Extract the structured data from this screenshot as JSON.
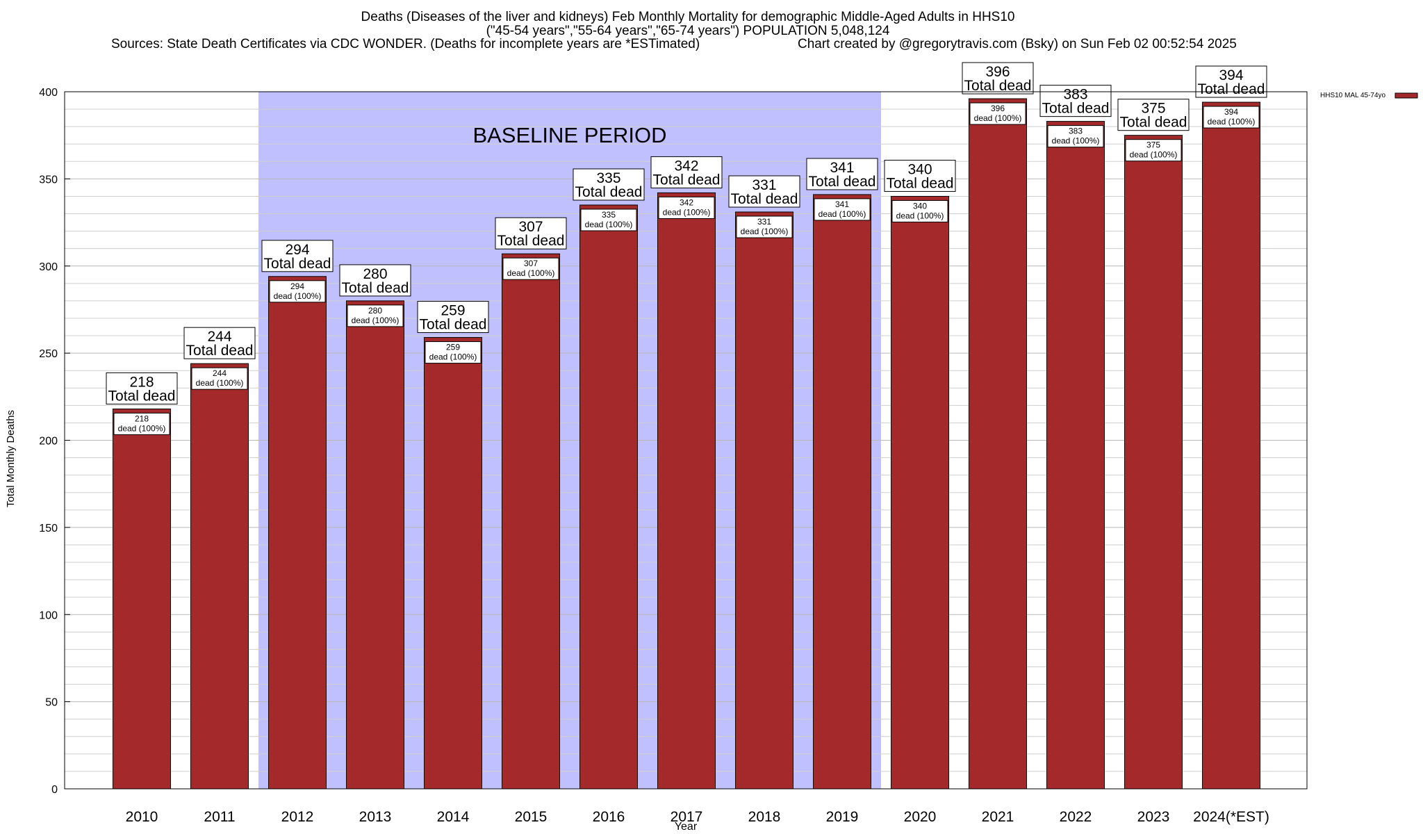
{
  "title": {
    "line1": "Deaths (Diseases of the liver and kidneys) Feb Monthly Mortality for demographic Middle-Aged Adults in HHS10",
    "line2": "(\"45-54 years\",\"55-64 years\",\"65-74 years\") POPULATION 5,048,124",
    "sources": "Sources: State Death Certificates via CDC WONDER. (Deaths for incomplete years are *ESTimated)",
    "credit": "Chart created by @gregorytravis.com (Bsky) on Sun Feb 02 00:52:54 2025"
  },
  "chart_data": {
    "type": "bar",
    "xlabel": "Year",
    "ylabel": "Total Monthly Deaths",
    "ylim": [
      0,
      400
    ],
    "yticks": [
      0,
      50,
      100,
      150,
      200,
      250,
      300,
      350,
      400
    ],
    "minor_grid_step": 10,
    "grid": true,
    "categories": [
      "2010",
      "2011",
      "2012",
      "2013",
      "2014",
      "2015",
      "2016",
      "2017",
      "2018",
      "2019",
      "2020",
      "2021",
      "2022",
      "2023",
      "2024(*EST)"
    ],
    "series": [
      {
        "name": "HHS10 MAL 45-74yo",
        "color": "#a3292b",
        "values": [
          218,
          244,
          294,
          280,
          259,
          307,
          335,
          342,
          331,
          341,
          340,
          396,
          383,
          375,
          394
        ]
      }
    ],
    "total_label": "Total dead",
    "inner_label": "dead (100%)",
    "baseline": {
      "label": "BASELINE PERIOD",
      "from": "2012",
      "to": "2019",
      "color": "#c0c0ff"
    },
    "legend_position": "top-right"
  }
}
